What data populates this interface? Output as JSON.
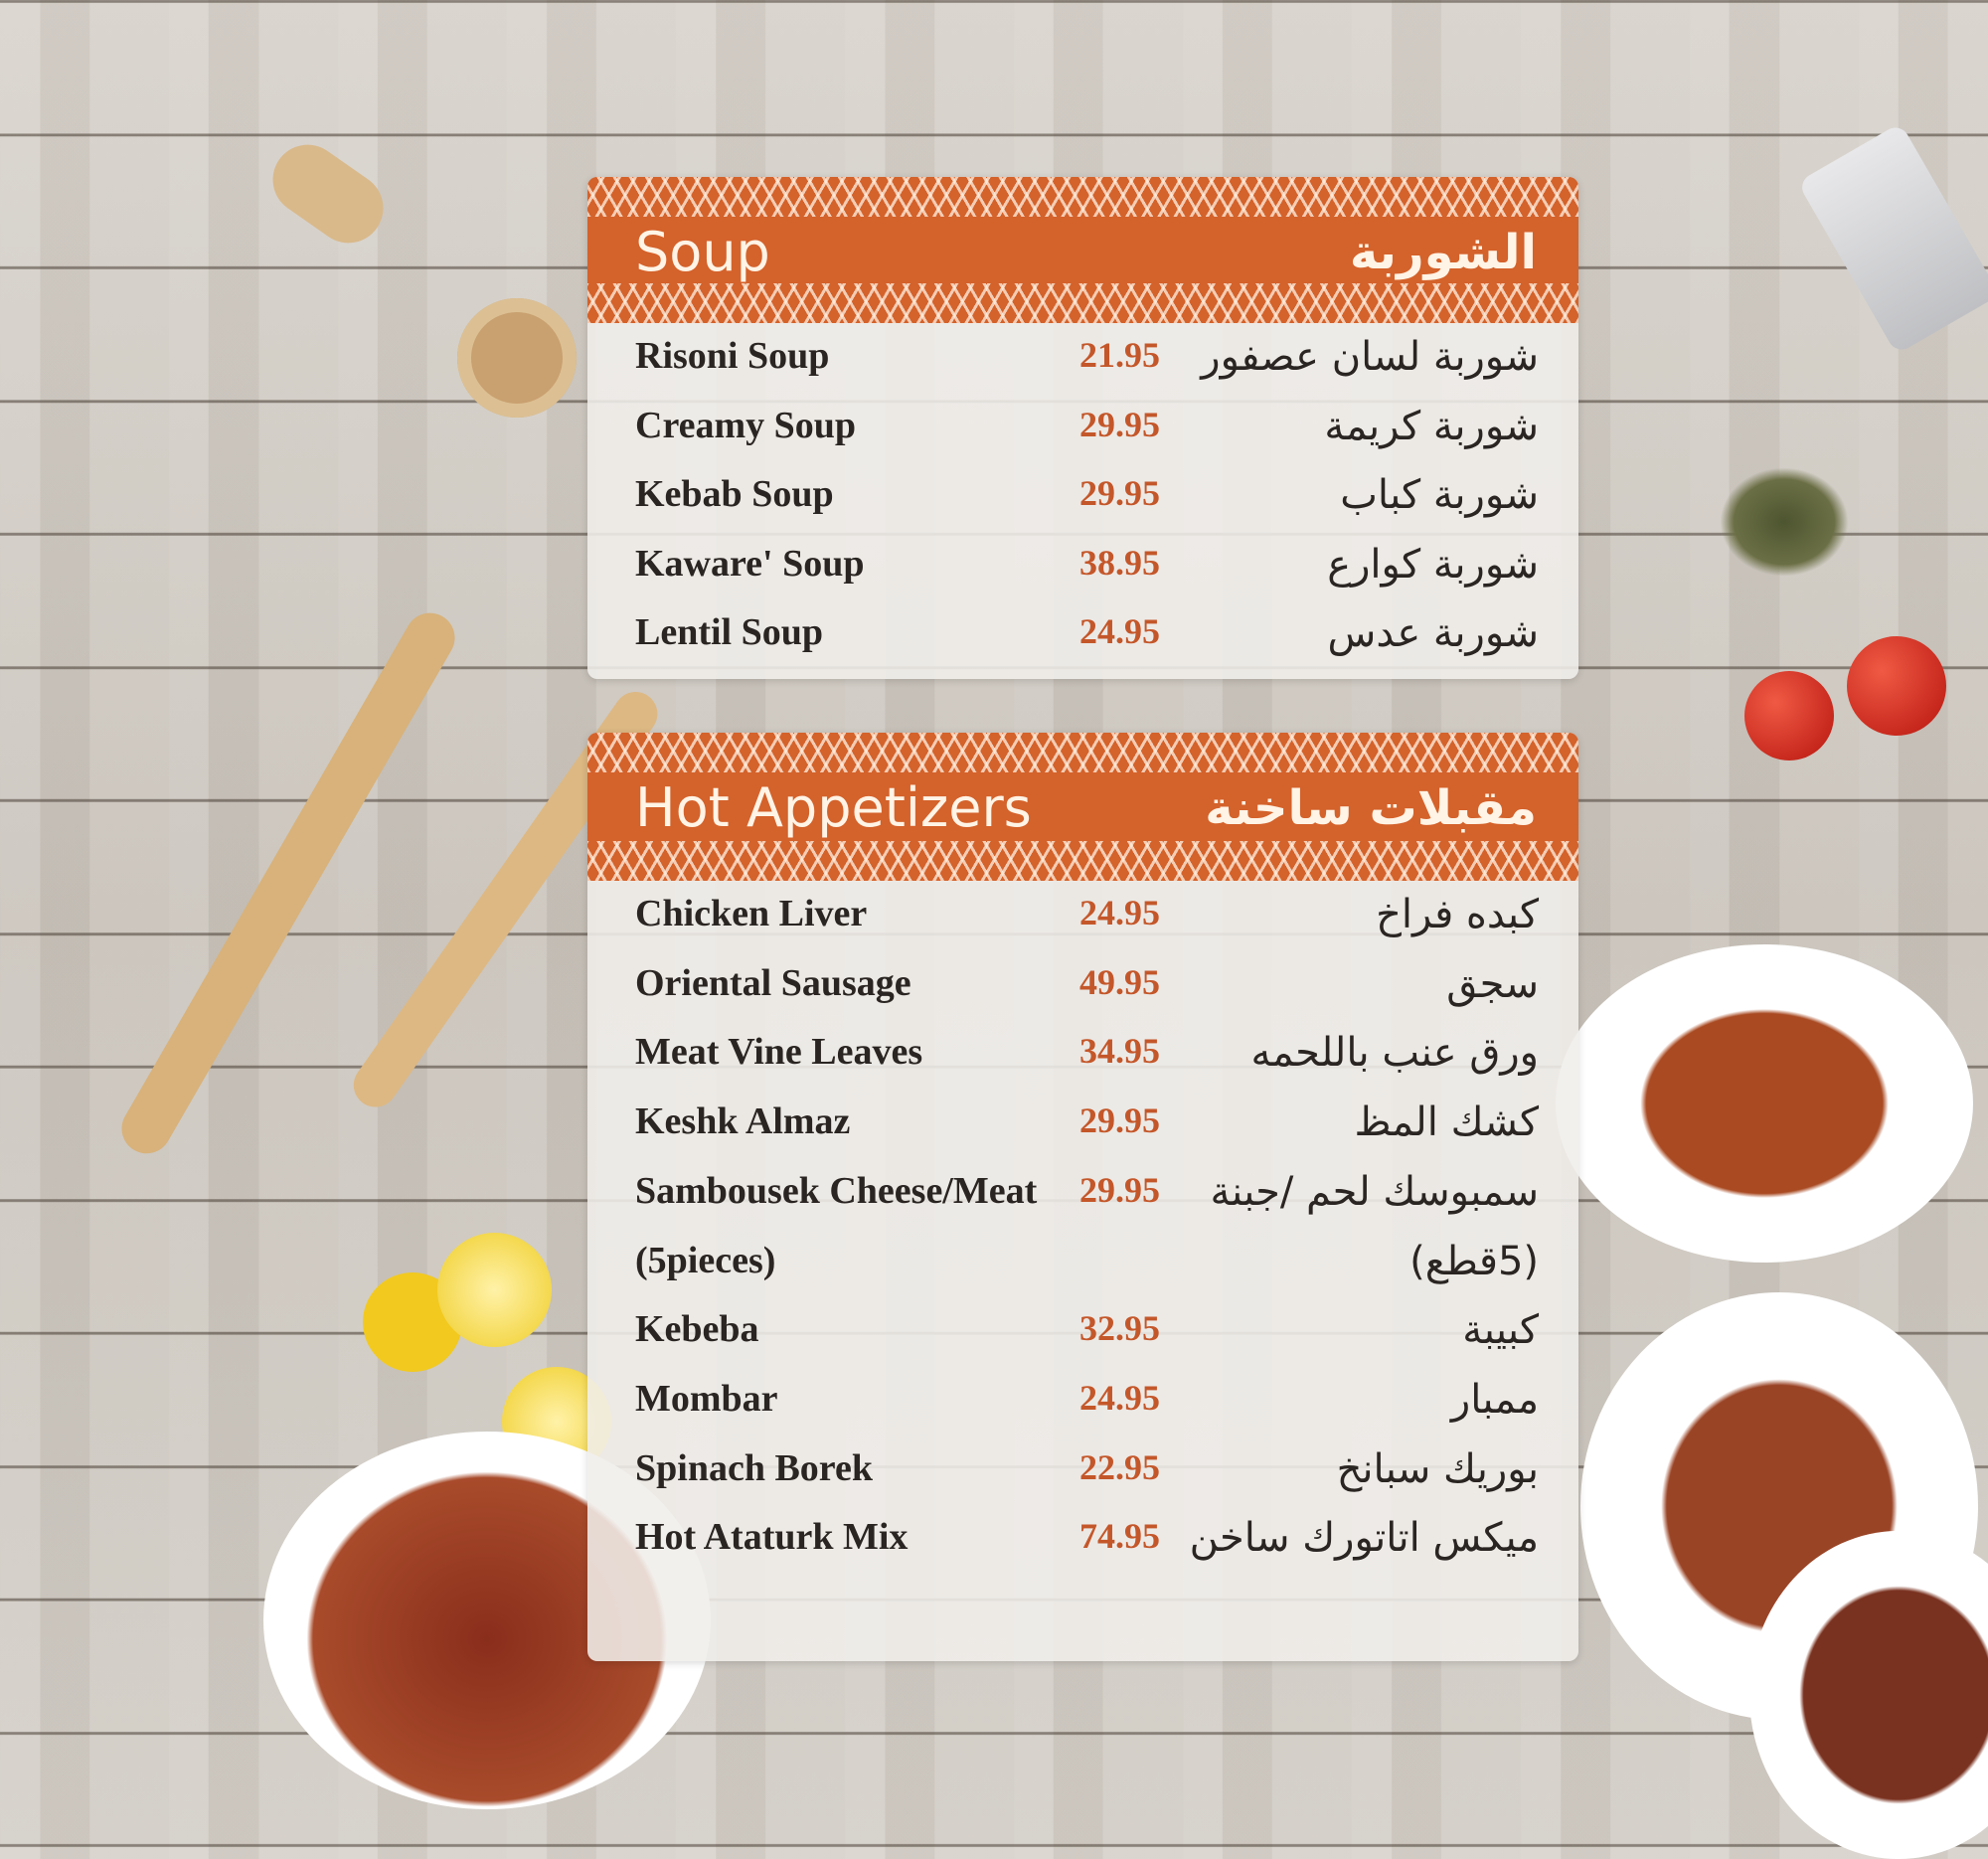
{
  "sections": [
    {
      "title_en": "Soup",
      "title_ar": "الشوربة",
      "items": [
        {
          "en": "Risoni Soup",
          "price": "21.95",
          "ar": "شوربة لسان عصفور"
        },
        {
          "en": "Creamy Soup",
          "price": "29.95",
          "ar": "شوربة كريمة"
        },
        {
          "en": "Kebab Soup",
          "price": "29.95",
          "ar": "شوربة كباب"
        },
        {
          "en": "Kaware' Soup",
          "price": "38.95",
          "ar": "شوربة كوارع"
        },
        {
          "en": "Lentil Soup",
          "price": "24.95",
          "ar": "شوربة عدس"
        }
      ]
    },
    {
      "title_en": "Hot Appetizers",
      "title_ar": "مقبلات ساخنة",
      "items": [
        {
          "en": "Chicken Liver",
          "price": "24.95",
          "ar": "كبده فراخ"
        },
        {
          "en": "Oriental Sausage",
          "price": "49.95",
          "ar": "سجق"
        },
        {
          "en": "Meat Vine Leaves",
          "price": "34.95",
          "ar": "ورق عنب باللحمه"
        },
        {
          "en": "Keshk Almaz",
          "price": "29.95",
          "ar": "كشك المظ"
        },
        {
          "en": "Sambousek Cheese/Meat",
          "price": "29.95",
          "ar": "سمبوسك لحم /جبنة"
        },
        {
          "en": "(5pieces)",
          "price": "",
          "ar": "(5قطع)"
        },
        {
          "en": "Kebeba",
          "price": "32.95",
          "ar": "كبيبة"
        },
        {
          "en": "Mombar",
          "price": "24.95",
          "ar": "ممبار"
        },
        {
          "en": "Spinach Borek",
          "price": "22.95",
          "ar": "بوريك سبانخ"
        },
        {
          "en": "Hot Ataturk Mix",
          "price": "74.95",
          "ar": "ميكس اتاتورك ساخن"
        }
      ]
    }
  ],
  "colors": {
    "accent": "#d4622b",
    "price": "#c4572a",
    "text": "#2a2522"
  }
}
